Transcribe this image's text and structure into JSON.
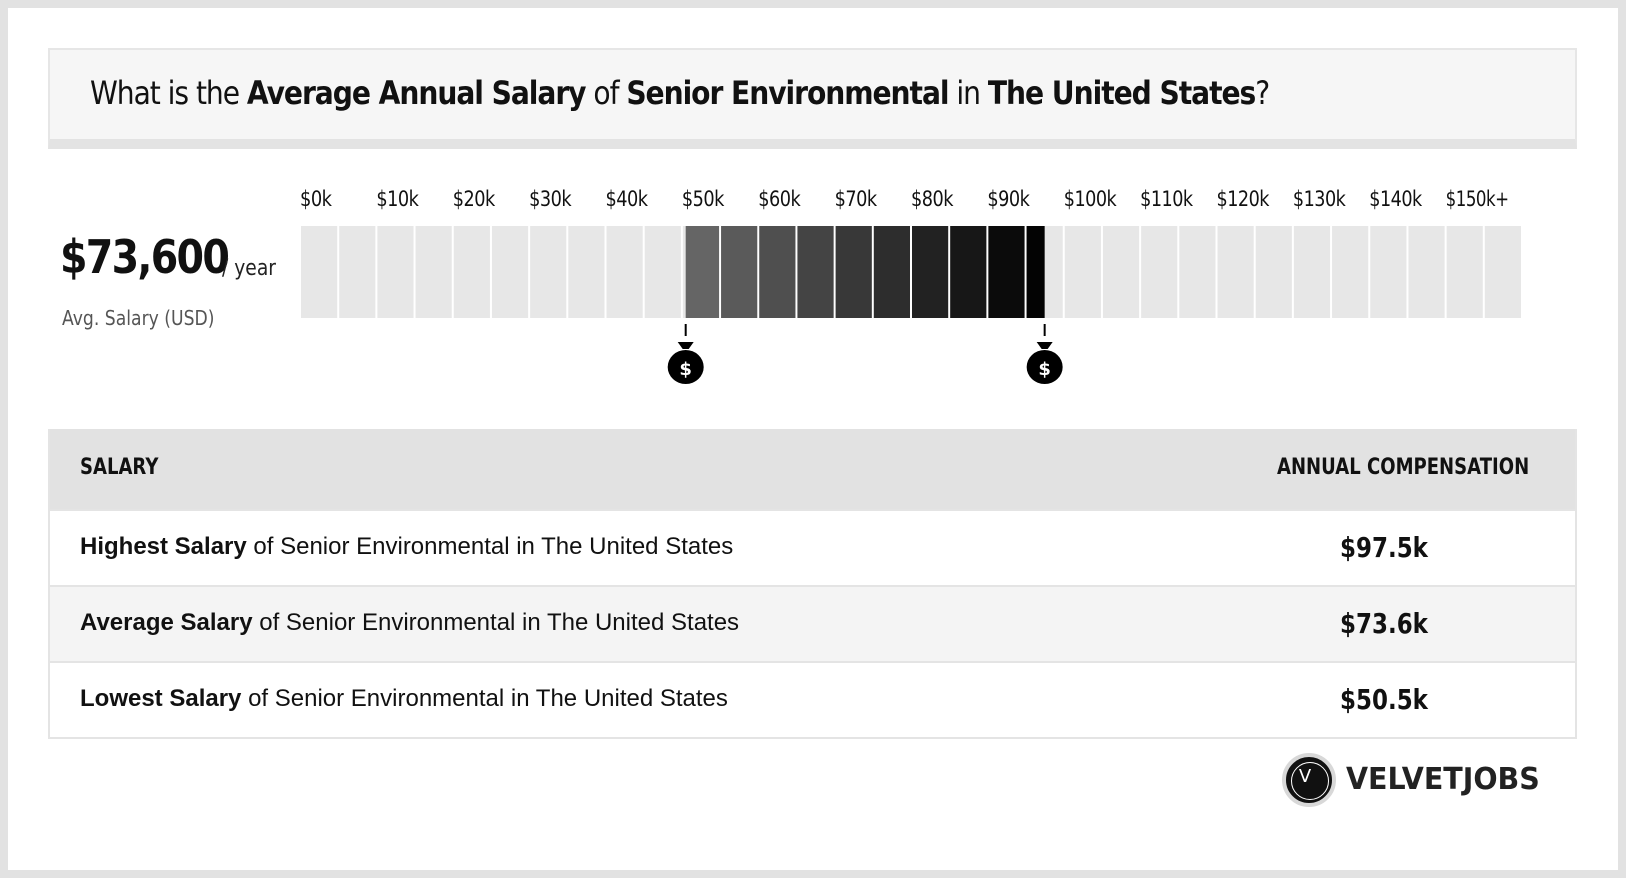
{
  "title": {
    "prefix": "What is the ",
    "metric": "Average Annual Salary",
    "of": " of ",
    "job": "Senior Environmental",
    "in": " in ",
    "location": "The United States",
    "suffix": "?"
  },
  "average": {
    "value": "$73,600",
    "unit": "/ year",
    "caption": "Avg. Salary (USD)"
  },
  "chart_data": {
    "type": "bar",
    "title": "",
    "xlabel": "",
    "ylabel": "",
    "tick_labels": [
      "$0k",
      "$10k",
      "$20k",
      "$30k",
      "$40k",
      "$50k",
      "$60k",
      "$70k",
      "$80k",
      "$90k",
      "$100k",
      "$110k",
      "$120k",
      "$130k",
      "$140k",
      "$150k+"
    ],
    "xlim": [
      0,
      160
    ],
    "segment_width": 5,
    "range": {
      "low": 50.5,
      "average": 73.6,
      "high": 97.5
    },
    "fill_colors": {
      "empty": "#e7e7e7",
      "low": "#6a6a6a",
      "high": "#000000"
    },
    "markers": [
      {
        "name": "lowest",
        "value": 50.5,
        "icon": "money-bag-icon"
      },
      {
        "name": "highest",
        "value": 97.5,
        "icon": "money-bag-icon"
      }
    ],
    "grid": true,
    "legend": "none"
  },
  "table": {
    "header_salary": "SALARY",
    "header_comp": "ANNUAL COMPENSATION",
    "rows": [
      {
        "bold": "Highest Salary",
        "rest": " of Senior Environmental in The United States",
        "value": "$97.5k"
      },
      {
        "bold": "Average Salary",
        "rest": " of Senior Environmental in The United States",
        "value": "$73.6k"
      },
      {
        "bold": "Lowest Salary",
        "rest": " of Senior Environmental in The United States",
        "value": "$50.5k"
      }
    ]
  },
  "logo": {
    "letter": "V",
    "text": "VELVETJOBS"
  }
}
